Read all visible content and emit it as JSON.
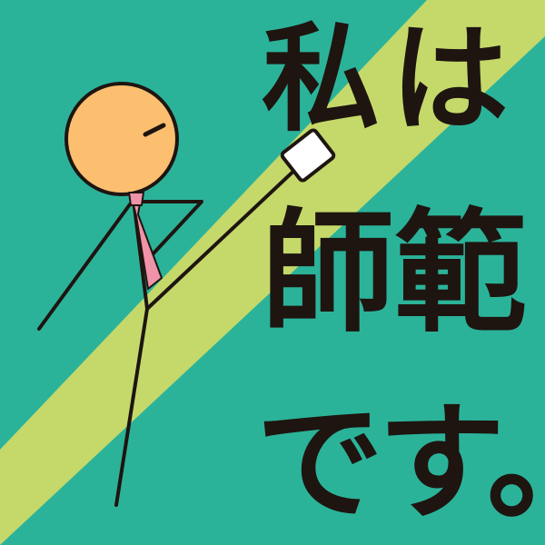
{
  "headline": {
    "line1": "私は",
    "line2": "師範",
    "line3": "です。"
  },
  "colors": {
    "background": "#2bb39a",
    "stripe": "#c4d96a",
    "text": "#1e1510",
    "face": "#fbbf6f",
    "tie": "#ef93a8",
    "outline": "#1e1510",
    "card": "#ffffff"
  },
  "icons": {
    "figure": "stick-figure-with-pointer-icon",
    "card": "white-card-icon"
  }
}
